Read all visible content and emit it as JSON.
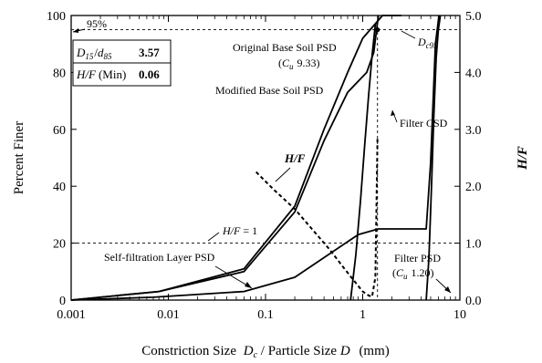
{
  "chart_data": {
    "type": "line",
    "title": "",
    "x_axis": {
      "label_text": "Constriction Size",
      "label_sym1": "D",
      "label_sub1": "c",
      "label_mid": " / Particle Size ",
      "label_sym2": "D",
      "label_unit": "(mm)",
      "scale": "log",
      "range": [
        0.001,
        10
      ],
      "ticks": [
        {
          "value": 0.001,
          "label": "0.001"
        },
        {
          "value": 0.01,
          "label": "0.01"
        },
        {
          "value": 0.1,
          "label": "0.1"
        },
        {
          "value": 1,
          "label": "1"
        },
        {
          "value": 10,
          "label": "10"
        }
      ]
    },
    "y_axis_left": {
      "label": "Percent Finer",
      "range": [
        0,
        100
      ],
      "ticks": [
        {
          "value": 0,
          "label": "0"
        },
        {
          "value": 20,
          "label": "20"
        },
        {
          "value": 40,
          "label": "40"
        },
        {
          "value": 60,
          "label": "60"
        },
        {
          "value": 80,
          "label": "80"
        },
        {
          "value": 100,
          "label": "100"
        }
      ]
    },
    "y_axis_right": {
      "label": "H/F",
      "range": [
        0,
        5
      ],
      "ticks": [
        {
          "value": 0,
          "label": "0.0"
        },
        {
          "value": 1,
          "label": "1.0"
        },
        {
          "value": 2,
          "label": "2.0"
        },
        {
          "value": 3,
          "label": "3.0"
        },
        {
          "value": 4,
          "label": "4.0"
        },
        {
          "value": 5,
          "label": "5.0"
        }
      ]
    },
    "series": [
      {
        "name": "Original Base Soil PSD",
        "axis": "left",
        "style": "solid",
        "x": [
          0.001,
          0.008,
          0.06,
          0.2,
          0.4,
          0.7,
          1.0,
          1.6,
          2.5
        ],
        "y": [
          0,
          3,
          11,
          33,
          60,
          80,
          92,
          100,
          100
        ]
      },
      {
        "name": "Modified Base Soil PSD",
        "axis": "left",
        "style": "solid",
        "x": [
          0.001,
          0.008,
          0.06,
          0.2,
          0.4,
          0.7,
          1.1,
          1.3,
          1.45
        ],
        "y": [
          0,
          3,
          10,
          31,
          56,
          73,
          80,
          87,
          100
        ]
      },
      {
        "name": "Self-filtration Layer PSD",
        "axis": "left",
        "style": "solid",
        "x": [
          0.001,
          0.007,
          0.06,
          0.2,
          0.9,
          1.45,
          4.5,
          5.0,
          5.6,
          6.1
        ],
        "y": [
          0,
          1,
          3,
          8,
          23,
          25,
          25,
          48,
          90,
          100
        ]
      },
      {
        "name": "Filter CSD",
        "axis": "left",
        "style": "solid",
        "x": [
          0.75,
          0.85,
          0.95,
          1.05,
          1.15,
          1.25,
          1.35
        ],
        "y": [
          0,
          16,
          35,
          55,
          72,
          86,
          97
        ]
      },
      {
        "name": "Filter PSD",
        "axis": "left",
        "style": "solid",
        "x": [
          4.5,
          4.8,
          5.1,
          5.4,
          5.7,
          6.0,
          6.3
        ],
        "y": [
          0,
          15,
          40,
          65,
          85,
          95,
          100
        ]
      },
      {
        "name": "H/F",
        "axis": "right",
        "style": "dotted",
        "x": [
          0.08,
          0.12,
          0.2,
          0.3,
          0.45,
          0.65,
          0.85,
          1.0,
          1.15,
          1.25,
          1.35,
          1.42
        ],
        "y": [
          2.25,
          1.95,
          1.6,
          1.25,
          0.9,
          0.55,
          0.3,
          0.15,
          0.08,
          0.06,
          0.4,
          2.85
        ]
      }
    ],
    "reference_lines": [
      {
        "axis": "left",
        "orientation": "horizontal",
        "value": 95,
        "style": "dashed"
      },
      {
        "axis": "right",
        "orientation": "horizontal",
        "value": 1.0,
        "style": "dashed"
      },
      {
        "orientation": "vertical",
        "value": 1.42,
        "style": "dashed"
      }
    ],
    "annotations": {
      "p95": "95%",
      "original": "Original Base Soil PSD",
      "original_cu_sym": "C",
      "original_cu_sub": "u",
      "original_cu_val": "9.33",
      "modified": "Modified Base Soil PSD",
      "filter_csd": "Filter CSD",
      "dc95_sym": "D",
      "dc95_sub": "c95",
      "hf_label": "H/F",
      "hf_one_sym": "H/F",
      "hf_one_val": "= 1",
      "self_filtration": "Self-filtration Layer PSD",
      "filter_psd": "Filter PSD",
      "filter_cu_sym": "C",
      "filter_cu_sub": "u",
      "filter_cu_val": "1.20"
    },
    "info_box": {
      "ratio_sym1": "D",
      "ratio_sub1": "15",
      "ratio_sep": "/",
      "ratio_sym2": "d",
      "ratio_sub2": "85",
      "ratio_value": "3.57",
      "hf_sym": "H/F",
      "hf_min": "(Min)",
      "hf_value": "0.06"
    }
  }
}
